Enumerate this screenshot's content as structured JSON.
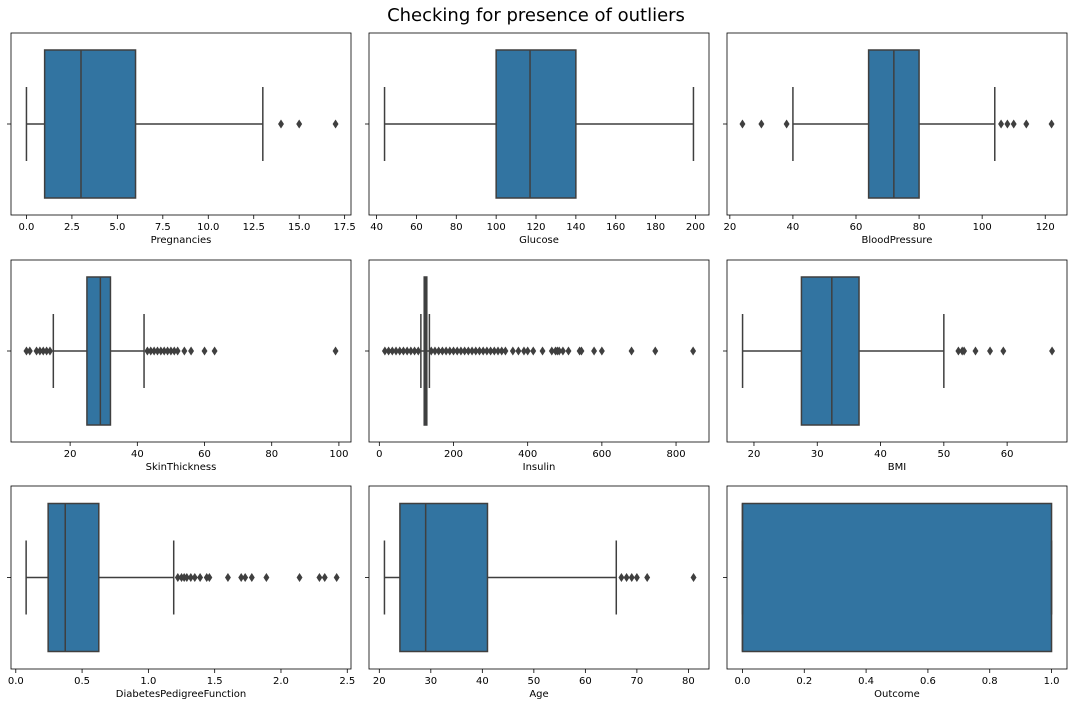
{
  "title": "Checking for presence of outliers",
  "colors": {
    "box": "#3274a1",
    "line": "#3f3f3f"
  },
  "chart_data": [
    {
      "type": "box",
      "xlabel": "Pregnancies",
      "xlim": [
        -0.85,
        17.85
      ],
      "ticks": [
        0,
        2.5,
        5,
        7.5,
        10,
        12.5,
        15,
        17.5
      ],
      "tick_labels": [
        "0.0",
        "2.5",
        "5.0",
        "7.5",
        "10.0",
        "12.5",
        "15.0",
        "17.5"
      ],
      "box": {
        "whislo": 0,
        "q1": 1,
        "med": 3,
        "q3": 6,
        "whishi": 13
      },
      "fliers": [
        14,
        15,
        17
      ]
    },
    {
      "type": "box",
      "xlabel": "Glucose",
      "xlim": [
        36.2,
        206.8
      ],
      "ticks": [
        40,
        60,
        80,
        100,
        120,
        140,
        160,
        180,
        200
      ],
      "tick_labels": [
        "40",
        "60",
        "80",
        "100",
        "120",
        "140",
        "160",
        "180",
        "200"
      ],
      "box": {
        "whislo": 44,
        "q1": 100,
        "med": 117,
        "q3": 140,
        "whishi": 199
      },
      "fliers": []
    },
    {
      "type": "box",
      "xlabel": "BloodPressure",
      "xlim": [
        19.1,
        126.9
      ],
      "ticks": [
        20,
        40,
        60,
        80,
        100,
        120
      ],
      "tick_labels": [
        "20",
        "40",
        "60",
        "80",
        "100",
        "120"
      ],
      "box": {
        "whislo": 40,
        "q1": 64,
        "med": 72,
        "q3": 80,
        "whishi": 104
      },
      "fliers": [
        24,
        30,
        38,
        106,
        108,
        110,
        114,
        122
      ]
    },
    {
      "type": "box",
      "xlabel": "SkinThickness",
      "xlim": [
        2.4,
        103.6
      ],
      "ticks": [
        20,
        40,
        60,
        80,
        100
      ],
      "tick_labels": [
        "20",
        "40",
        "60",
        "80",
        "100"
      ],
      "box": {
        "whislo": 15,
        "q1": 25,
        "med": 29,
        "q3": 32,
        "whishi": 42
      },
      "fliers": [
        7,
        8,
        10,
        11,
        12,
        13,
        14,
        43,
        44,
        45,
        46,
        47,
        48,
        49,
        50,
        51,
        52,
        54,
        56,
        60,
        63,
        99
      ]
    },
    {
      "type": "box",
      "xlabel": "Insulin",
      "xlim": [
        -27.85,
        888.85
      ],
      "ticks": [
        0,
        200,
        400,
        600,
        800
      ],
      "tick_labels": [
        "0",
        "200",
        "400",
        "600",
        "800"
      ],
      "box": {
        "whislo": 112,
        "q1": 121,
        "med": 125,
        "q3": 128,
        "whishi": 135
      },
      "fliers": [
        15,
        25,
        35,
        45,
        55,
        65,
        75,
        85,
        95,
        105,
        140,
        150,
        160,
        170,
        180,
        190,
        200,
        210,
        220,
        230,
        240,
        250,
        260,
        270,
        280,
        290,
        300,
        310,
        320,
        330,
        340,
        360,
        375,
        390,
        400,
        415,
        440,
        465,
        475,
        480,
        485,
        495,
        510,
        540,
        545,
        579,
        600,
        680,
        744,
        846
      ]
    },
    {
      "type": "box",
      "xlabel": "BMI",
      "xlim": [
        15.74,
        69.46
      ],
      "ticks": [
        20,
        30,
        40,
        50,
        60
      ],
      "tick_labels": [
        "20",
        "30",
        "40",
        "50",
        "60"
      ],
      "box": {
        "whislo": 18.2,
        "q1": 27.5,
        "med": 32.3,
        "q3": 36.6,
        "whishi": 50.0
      },
      "fliers": [
        52.3,
        52.9,
        53.2,
        55.0,
        57.3,
        59.4,
        67.1
      ]
    },
    {
      "type": "box",
      "xlabel": "DiabetesPedigreeFunction",
      "xlim": [
        -0.0361,
        2.5281
      ],
      "ticks": [
        0.0,
        0.5,
        1.0,
        1.5,
        2.0,
        2.5
      ],
      "tick_labels": [
        "0.0",
        "0.5",
        "1.0",
        "1.5",
        "2.0",
        "2.5"
      ],
      "box": {
        "whislo": 0.078,
        "q1": 0.244,
        "med": 0.373,
        "q3": 0.626,
        "whishi": 1.191
      },
      "fliers": [
        1.222,
        1.25,
        1.27,
        1.29,
        1.32,
        1.35,
        1.39,
        1.44,
        1.46,
        1.6,
        1.7,
        1.73,
        1.78,
        1.89,
        2.14,
        2.29,
        2.33,
        2.42
      ]
    },
    {
      "type": "box",
      "xlabel": "Age",
      "xlim": [
        18,
        84
      ],
      "ticks": [
        20,
        30,
        40,
        50,
        60,
        70,
        80
      ],
      "tick_labels": [
        "20",
        "30",
        "40",
        "50",
        "60",
        "70",
        "80"
      ],
      "box": {
        "whislo": 21,
        "q1": 24,
        "med": 29,
        "q3": 41,
        "whishi": 66
      },
      "fliers": [
        67,
        68,
        69,
        70,
        72,
        81
      ]
    },
    {
      "type": "box",
      "xlabel": "Outcome",
      "xlim": [
        -0.05,
        1.05
      ],
      "ticks": [
        0.0,
        0.2,
        0.4,
        0.6,
        0.8,
        1.0
      ],
      "tick_labels": [
        "0.0",
        "0.2",
        "0.4",
        "0.6",
        "0.8",
        "1.0"
      ],
      "box": {
        "whislo": 0,
        "q1": 0,
        "med": 0,
        "q3": 1,
        "whishi": 1
      },
      "fliers": []
    }
  ]
}
